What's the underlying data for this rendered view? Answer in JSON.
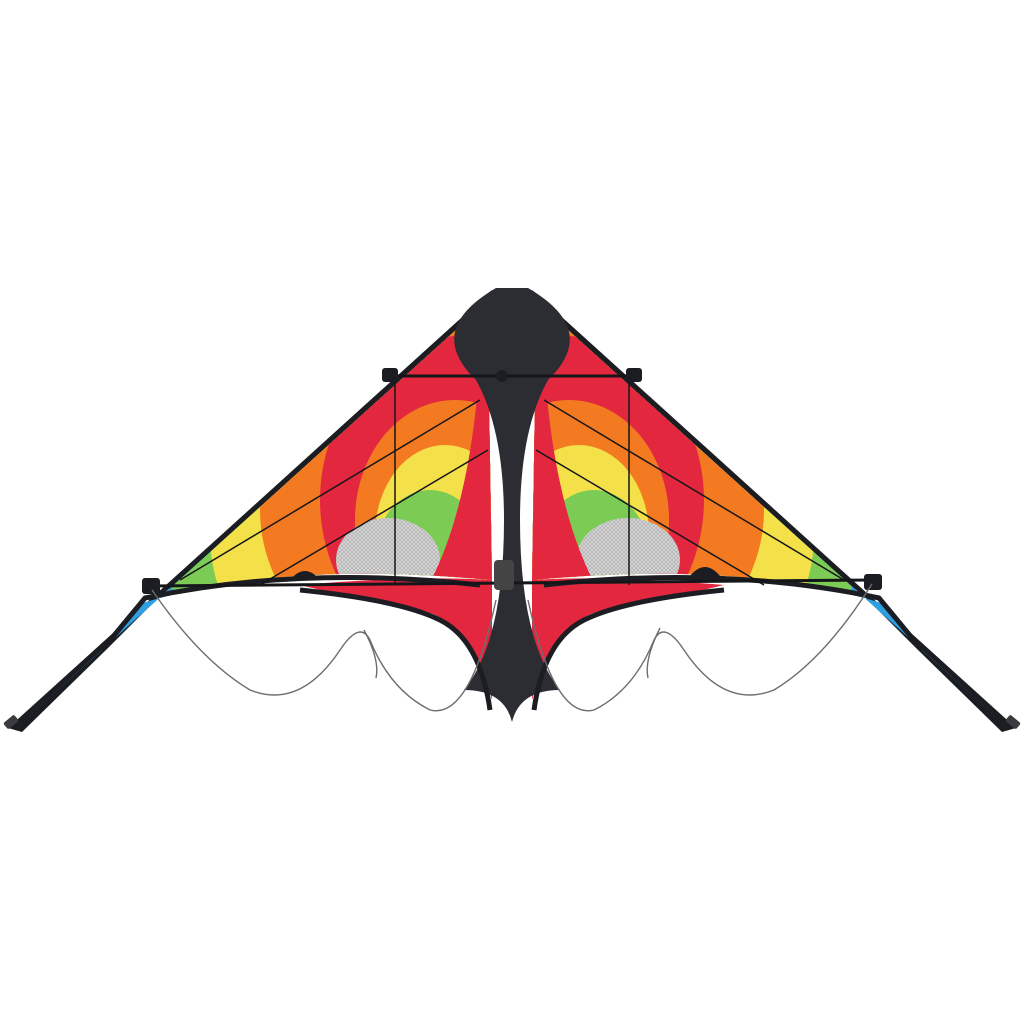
{
  "scene": {
    "subject": "delta-stunt-kite-icon",
    "background": "#ffffff"
  },
  "colors": {
    "frame": "#1b1d22",
    "spine_panel": "#2b2d33",
    "red": "#e3273f",
    "orange": "#f47a22",
    "yellow": "#f4e14a",
    "green": "#7ccb55",
    "blue": "#2f9fe3",
    "mesh": "#c9c9c9",
    "line": "#6d6d6d"
  }
}
